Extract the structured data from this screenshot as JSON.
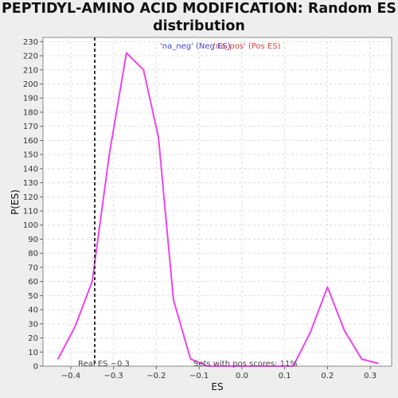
{
  "chart_data": {
    "type": "line",
    "title_line1": "PEPTIDYL-AMINO ACID MODIFICATION: Random ES",
    "title_line2": "distribution",
    "xlabel": "ES",
    "ylabel": "P(ES)",
    "xlim": [
      -0.465,
      0.35
    ],
    "ylim": [
      0,
      233
    ],
    "x_ticks": [
      -0.4,
      -0.3,
      -0.2,
      -0.1,
      0.0,
      0.1,
      0.2,
      0.3
    ],
    "x_tick_labels": [
      "−0.4",
      "−0.3",
      "−0.2",
      "−0.1",
      "0.0",
      "0.1",
      "0.2",
      "0.3"
    ],
    "y_ticks": [
      0,
      10,
      20,
      30,
      40,
      50,
      60,
      70,
      80,
      90,
      100,
      110,
      120,
      130,
      140,
      150,
      160,
      170,
      180,
      190,
      200,
      210,
      220,
      230
    ],
    "grid": true,
    "legend": {
      "placement": "top-center",
      "entries": [
        {
          "label": "'na_neg' (Neg ES)",
          "color": "#4444cc"
        },
        {
          "label": "'na_pos' (Pos ES)",
          "color": "#dd4444"
        }
      ]
    },
    "series": [
      {
        "color": "#ee44ee",
        "x": [
          -0.43,
          -0.39,
          -0.35,
          -0.31,
          -0.27,
          -0.23,
          -0.195,
          -0.16,
          -0.12,
          -0.08,
          -0.04,
          0.0,
          0.04,
          0.08,
          0.12,
          0.16,
          0.2,
          0.24,
          0.28,
          0.318
        ],
        "y": [
          5,
          28,
          60,
          150,
          222,
          210,
          162,
          47,
          5,
          0,
          0,
          0,
          0,
          0,
          0,
          24,
          56,
          25,
          5,
          2
        ]
      }
    ],
    "reference_line": {
      "x": -0.344,
      "style": "dashed",
      "color": "#333333"
    },
    "annotations": {
      "real_es": "Real ES −0.3",
      "pos_scores": "Sets with pos scores: 11%"
    }
  }
}
